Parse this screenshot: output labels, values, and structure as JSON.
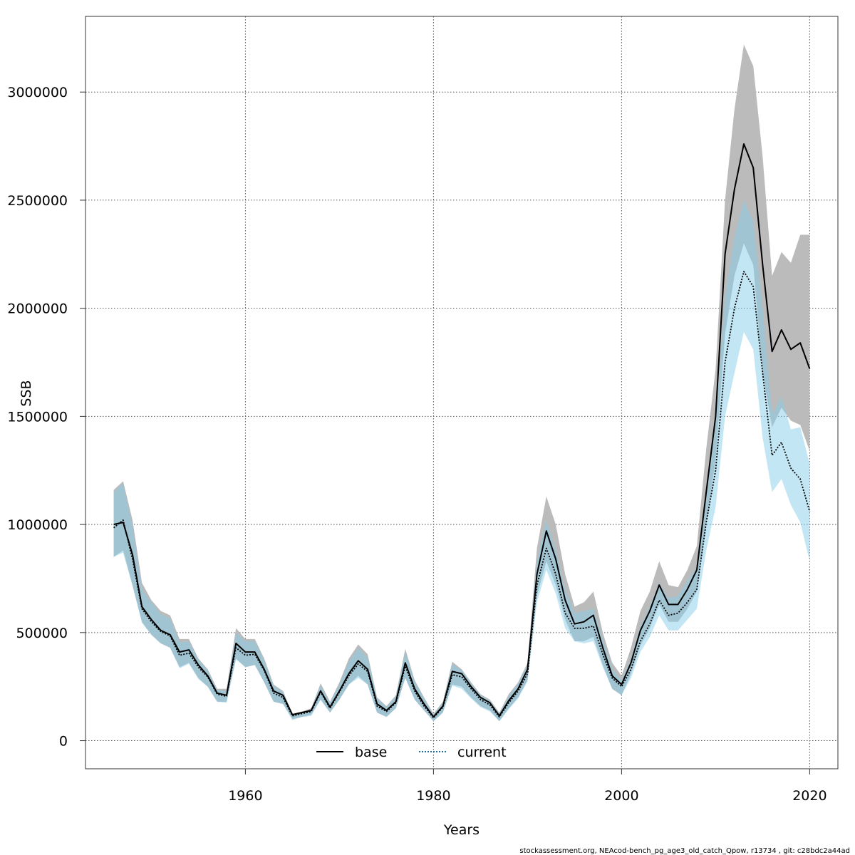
{
  "footer": {
    "caption": "stockassessment.org, NEAcod-bench_pg_age3_old_catch_Qpow, r13734 , git: c28bdc2a44ad"
  },
  "chart_data": {
    "type": "area",
    "title": "",
    "xlabel": "Years",
    "ylabel": "SSB",
    "xlim": [
      1943,
      2023
    ],
    "ylim": [
      -130000,
      3350000
    ],
    "x_ticks": [
      1960,
      1980,
      2000,
      2020
    ],
    "y_ticks": [
      0,
      500000,
      1000000,
      1500000,
      2000000,
      2500000,
      3000000
    ],
    "grid": true,
    "legend_position": "bottom-center",
    "x": [
      1946,
      1947,
      1948,
      1949,
      1950,
      1951,
      1952,
      1953,
      1954,
      1955,
      1956,
      1957,
      1958,
      1959,
      1960,
      1961,
      1962,
      1963,
      1964,
      1965,
      1966,
      1967,
      1968,
      1969,
      1970,
      1971,
      1972,
      1973,
      1974,
      1975,
      1976,
      1977,
      1978,
      1979,
      1980,
      1981,
      1982,
      1983,
      1984,
      1985,
      1986,
      1987,
      1988,
      1989,
      1990,
      1991,
      1992,
      1993,
      1994,
      1995,
      1996,
      1997,
      1998,
      1999,
      2000,
      2001,
      2002,
      2003,
      2004,
      2005,
      2006,
      2007,
      2008,
      2009,
      2010,
      2011,
      2012,
      2013,
      2014,
      2015,
      2016,
      2017,
      2018,
      2019,
      2020
    ],
    "series": [
      {
        "name": "base",
        "line_color": "#000000",
        "line_style": "solid",
        "band_color": "#bbbbbb",
        "values": [
          1000000,
          1010000,
          860000,
          620000,
          560000,
          510000,
          490000,
          410000,
          420000,
          350000,
          300000,
          220000,
          210000,
          450000,
          410000,
          410000,
          330000,
          230000,
          210000,
          120000,
          130000,
          140000,
          230000,
          155000,
          230000,
          310000,
          370000,
          330000,
          170000,
          140000,
          180000,
          360000,
          240000,
          170000,
          110000,
          160000,
          320000,
          310000,
          250000,
          200000,
          175000,
          115000,
          185000,
          240000,
          330000,
          770000,
          970000,
          840000,
          650000,
          540000,
          550000,
          580000,
          430000,
          300000,
          260000,
          360000,
          510000,
          600000,
          720000,
          630000,
          630000,
          700000,
          790000,
          1150000,
          1500000,
          2250000,
          2550000,
          2760000,
          2650000,
          2200000,
          1800000,
          1900000,
          1810000,
          1840000,
          1720000
        ],
        "lower": [
          850000,
          880000,
          720000,
          550000,
          490000,
          450000,
          430000,
          340000,
          360000,
          290000,
          250000,
          180000,
          180000,
          380000,
          340000,
          350000,
          270000,
          180000,
          170000,
          100000,
          110000,
          120000,
          190000,
          130000,
          190000,
          260000,
          300000,
          260000,
          130000,
          110000,
          150000,
          290000,
          190000,
          140000,
          90000,
          130000,
          260000,
          250000,
          200000,
          160000,
          140000,
          90000,
          150000,
          200000,
          280000,
          670000,
          830000,
          720000,
          560000,
          460000,
          460000,
          480000,
          350000,
          240000,
          210000,
          310000,
          440000,
          520000,
          630000,
          550000,
          550000,
          610000,
          690000,
          1000000,
          1300000,
          1880000,
          2150000,
          2300000,
          2200000,
          1700000,
          1450000,
          1540000,
          1480000,
          1460000,
          1340000
        ],
        "upper": [
          1160000,
          1200000,
          1020000,
          730000,
          650000,
          600000,
          580000,
          470000,
          470000,
          380000,
          330000,
          240000,
          240000,
          520000,
          470000,
          470000,
          380000,
          260000,
          230000,
          125000,
          135000,
          150000,
          265000,
          180000,
          270000,
          380000,
          445000,
          400000,
          200000,
          160000,
          210000,
          425000,
          280000,
          200000,
          125000,
          180000,
          365000,
          330000,
          270000,
          215000,
          190000,
          130000,
          215000,
          270000,
          360000,
          890000,
          1130000,
          1000000,
          770000,
          620000,
          640000,
          690000,
          500000,
          360000,
          300000,
          430000,
          600000,
          690000,
          830000,
          720000,
          710000,
          790000,
          900000,
          1350000,
          1720000,
          2500000,
          2920000,
          3220000,
          3120000,
          2700000,
          2150000,
          2260000,
          2210000,
          2340000,
          2340000
        ]
      },
      {
        "name": "current",
        "line_color": "#000000",
        "line_style": "dotted",
        "band_color": "#87ceeb",
        "values": [
          985000,
          1020000,
          840000,
          610000,
          550000,
          505000,
          485000,
          395000,
          405000,
          340000,
          295000,
          215000,
          205000,
          430000,
          395000,
          400000,
          325000,
          220000,
          200000,
          115000,
          125000,
          135000,
          225000,
          150000,
          225000,
          300000,
          355000,
          320000,
          160000,
          135000,
          175000,
          345000,
          230000,
          160000,
          105000,
          155000,
          305000,
          295000,
          240000,
          190000,
          165000,
          110000,
          175000,
          230000,
          310000,
          720000,
          890000,
          770000,
          590000,
          520000,
          520000,
          530000,
          400000,
          290000,
          250000,
          330000,
          460000,
          540000,
          650000,
          580000,
          590000,
          640000,
          700000,
          1010000,
          1250000,
          1750000,
          2000000,
          2170000,
          2100000,
          1700000,
          1320000,
          1380000,
          1260000,
          1210000,
          1060000
        ],
        "lower": [
          850000,
          870000,
          715000,
          545000,
          490000,
          450000,
          430000,
          335000,
          355000,
          285000,
          250000,
          180000,
          175000,
          375000,
          340000,
          350000,
          270000,
          180000,
          170000,
          95000,
          110000,
          115000,
          190000,
          130000,
          190000,
          260000,
          290000,
          260000,
          130000,
          110000,
          150000,
          290000,
          190000,
          140000,
          90000,
          130000,
          255000,
          240000,
          195000,
          155000,
          135000,
          90000,
          145000,
          195000,
          275000,
          640000,
          790000,
          680000,
          520000,
          460000,
          450000,
          460000,
          340000,
          240000,
          210000,
          290000,
          410000,
          480000,
          580000,
          510000,
          510000,
          560000,
          610000,
          880000,
          1080000,
          1500000,
          1700000,
          1890000,
          1810000,
          1400000,
          1150000,
          1210000,
          1090000,
          1010000,
          830000
        ],
        "upper": [
          1150000,
          1190000,
          995000,
          700000,
          640000,
          585000,
          565000,
          455000,
          460000,
          375000,
          325000,
          235000,
          230000,
          500000,
          460000,
          460000,
          370000,
          255000,
          225000,
          120000,
          130000,
          145000,
          255000,
          175000,
          260000,
          365000,
          430000,
          385000,
          195000,
          155000,
          205000,
          410000,
          275000,
          195000,
          120000,
          175000,
          355000,
          325000,
          265000,
          210000,
          185000,
          125000,
          205000,
          265000,
          350000,
          830000,
          1020000,
          880000,
          700000,
          590000,
          600000,
          610000,
          470000,
          330000,
          280000,
          380000,
          530000,
          620000,
          730000,
          660000,
          670000,
          740000,
          800000,
          1180000,
          1480000,
          2050000,
          2330000,
          2500000,
          2400000,
          2000000,
          1510000,
          1590000,
          1440000,
          1450000,
          1280000
        ]
      }
    ]
  }
}
